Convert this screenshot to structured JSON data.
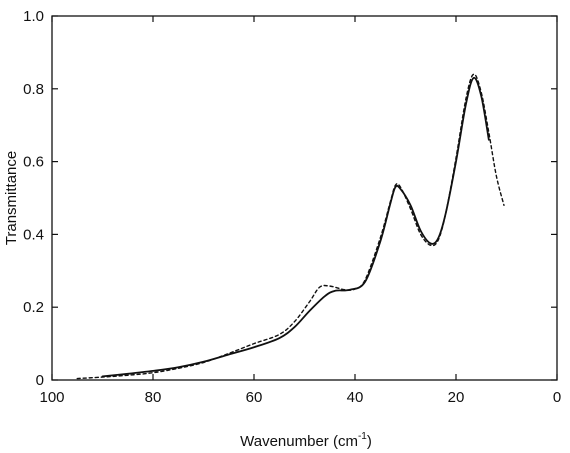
{
  "chart_data": {
    "type": "line",
    "title": "",
    "xlabel": "Wavenumber (cm",
    "xlabel_sup": "-1",
    "xlabel_close": ")",
    "ylabel": "Transmittance",
    "xlim": [
      100,
      0
    ],
    "ylim": [
      0,
      1.0
    ],
    "x_reversed": true,
    "grid": false,
    "legend": "none",
    "xticks": [
      100,
      80,
      60,
      40,
      20,
      0
    ],
    "yticks": [
      0,
      0.2,
      0.4,
      0.6,
      0.8,
      1.0
    ],
    "xtick_labels": [
      "100",
      "80",
      "60",
      "40",
      "20",
      "0"
    ],
    "ytick_labels": [
      "0",
      "0.2",
      "0.4",
      "0.6",
      "0.8",
      "1.0"
    ],
    "series": [
      {
        "style": "solid",
        "color": "#111111",
        "points": [
          [
            90,
            0.01
          ],
          [
            85,
            0.017
          ],
          [
            80,
            0.025
          ],
          [
            75,
            0.035
          ],
          [
            70,
            0.05
          ],
          [
            65,
            0.07
          ],
          [
            60,
            0.09
          ],
          [
            55,
            0.115
          ],
          [
            52,
            0.145
          ],
          [
            49,
            0.19
          ],
          [
            46,
            0.23
          ],
          [
            44,
            0.245
          ],
          [
            41,
            0.248
          ],
          [
            38,
            0.27
          ],
          [
            35,
            0.38
          ],
          [
            33,
            0.485
          ],
          [
            32,
            0.53
          ],
          [
            31,
            0.525
          ],
          [
            29,
            0.48
          ],
          [
            27,
            0.41
          ],
          [
            25,
            0.375
          ],
          [
            23.5,
            0.39
          ],
          [
            22,
            0.46
          ],
          [
            20,
            0.6
          ],
          [
            18,
            0.76
          ],
          [
            16.5,
            0.83
          ],
          [
            15,
            0.78
          ],
          [
            13.5,
            0.66
          ]
        ]
      },
      {
        "style": "dashed",
        "color": "#111111",
        "points": [
          [
            95,
            0.004
          ],
          [
            90,
            0.008
          ],
          [
            85,
            0.013
          ],
          [
            80,
            0.02
          ],
          [
            75,
            0.032
          ],
          [
            70,
            0.048
          ],
          [
            65,
            0.073
          ],
          [
            60,
            0.1
          ],
          [
            55,
            0.125
          ],
          [
            52,
            0.16
          ],
          [
            49,
            0.215
          ],
          [
            47,
            0.255
          ],
          [
            45,
            0.258
          ],
          [
            42,
            0.248
          ],
          [
            40,
            0.25
          ],
          [
            38,
            0.275
          ],
          [
            35,
            0.39
          ],
          [
            33,
            0.49
          ],
          [
            32,
            0.535
          ],
          [
            31,
            0.53
          ],
          [
            29,
            0.47
          ],
          [
            27,
            0.4
          ],
          [
            25,
            0.37
          ],
          [
            23.5,
            0.385
          ],
          [
            22,
            0.46
          ],
          [
            20,
            0.61
          ],
          [
            18,
            0.775
          ],
          [
            16.5,
            0.84
          ],
          [
            15,
            0.79
          ],
          [
            13.5,
            0.68
          ],
          [
            12,
            0.56
          ],
          [
            10.5,
            0.48
          ]
        ]
      }
    ]
  }
}
